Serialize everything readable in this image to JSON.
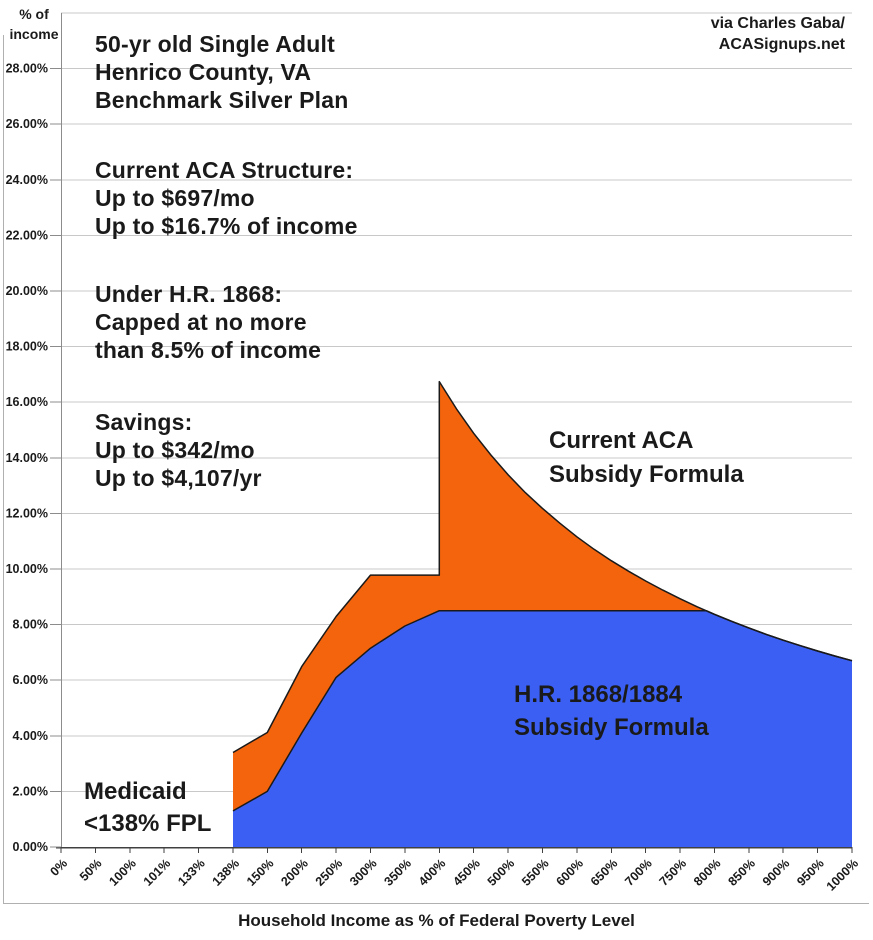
{
  "attribution": {
    "text": "via Charles Gaba/\nACASignups.net"
  },
  "annotations": {
    "scenario": "50-yr old Single Adult\nHenrico County, VA\nBenchmark Silver Plan",
    "current_aca_structure": "Current ACA Structure:\nUp to $697/mo\nUp to $16.7% of income",
    "under_hr1868": "Under H.R. 1868:\nCapped at no more\nthan 8.5% of income",
    "savings": "Savings:\nUp to $342/mo\nUp to $4,107/yr",
    "medicaid": "Medicaid\n<138% FPL",
    "orange_series_label": "Current ACA\nSubsidy Formula",
    "blue_series_label": "H.R. 1868/1884\nSubsidy Formula"
  },
  "chart_data": {
    "type": "area",
    "title": "",
    "x_axis": {
      "title": "Household Income as % of Federal Poverty Level",
      "categories": [
        "0%",
        "50%",
        "100%",
        "101%",
        "133%",
        "138%",
        "150%",
        "200%",
        "250%",
        "300%",
        "350%",
        "400%",
        "450%",
        "500%",
        "550%",
        "600%",
        "650%",
        "700%",
        "750%",
        "800%",
        "850%",
        "900%",
        "950%",
        "1000%"
      ]
    },
    "y_axis": {
      "title": "% of\nincome",
      "min": 0,
      "max": 30,
      "tick_step": 2,
      "tick_labels": [
        "0.00%",
        "2.00%",
        "4.00%",
        "6.00%",
        "8.00%",
        "10.00%",
        "12.00%",
        "14.00%",
        "16.00%",
        "18.00%",
        "20.00%",
        "22.00%",
        "24.00%",
        "26.00%",
        "28.00%"
      ]
    },
    "grid": true,
    "legend_position": "none-in-chart-labels",
    "series": [
      {
        "name": "Current ACA Subsidy Formula",
        "color": "#F4640C",
        "points": [
          [
            138,
            3.4
          ],
          [
            150,
            4.12
          ],
          [
            200,
            6.49
          ],
          [
            250,
            8.29
          ],
          [
            300,
            9.78
          ],
          [
            350,
            9.78
          ],
          [
            400,
            9.78
          ],
          [
            400,
            16.74
          ],
          [
            425,
            15.76
          ],
          [
            450,
            14.88
          ],
          [
            475,
            14.1
          ],
          [
            500,
            13.39
          ],
          [
            525,
            12.75
          ],
          [
            550,
            12.18
          ],
          [
            575,
            11.65
          ],
          [
            600,
            11.16
          ],
          [
            625,
            10.71
          ],
          [
            650,
            10.3
          ],
          [
            675,
            9.92
          ],
          [
            700,
            9.57
          ],
          [
            725,
            9.24
          ],
          [
            750,
            8.93
          ],
          [
            775,
            8.64
          ],
          [
            800,
            8.37
          ],
          [
            825,
            8.12
          ],
          [
            850,
            7.88
          ],
          [
            875,
            7.65
          ],
          [
            900,
            7.44
          ],
          [
            925,
            7.24
          ],
          [
            950,
            7.05
          ],
          [
            975,
            6.87
          ],
          [
            1000,
            6.7
          ]
        ]
      },
      {
        "name": "H.R. 1868/1884 Subsidy Formula",
        "color": "#3B5FF2",
        "points": [
          [
            138,
            1.3
          ],
          [
            150,
            2.0
          ],
          [
            200,
            4.1
          ],
          [
            250,
            6.1
          ],
          [
            300,
            7.15
          ],
          [
            350,
            7.95
          ],
          [
            400,
            8.5
          ],
          [
            788,
            8.5
          ],
          [
            800,
            8.37
          ],
          [
            825,
            8.12
          ],
          [
            850,
            7.88
          ],
          [
            875,
            7.65
          ],
          [
            900,
            7.44
          ],
          [
            925,
            7.24
          ],
          [
            950,
            7.05
          ],
          [
            975,
            6.87
          ],
          [
            1000,
            6.7
          ]
        ]
      }
    ]
  },
  "style": {
    "gridline_color": "#c8c8c8",
    "axis_color": "#404040",
    "y_axis_color": "#8c8c8c",
    "series_outline_color": "#1a1a1a",
    "frame_color": "#b0b0b0"
  }
}
